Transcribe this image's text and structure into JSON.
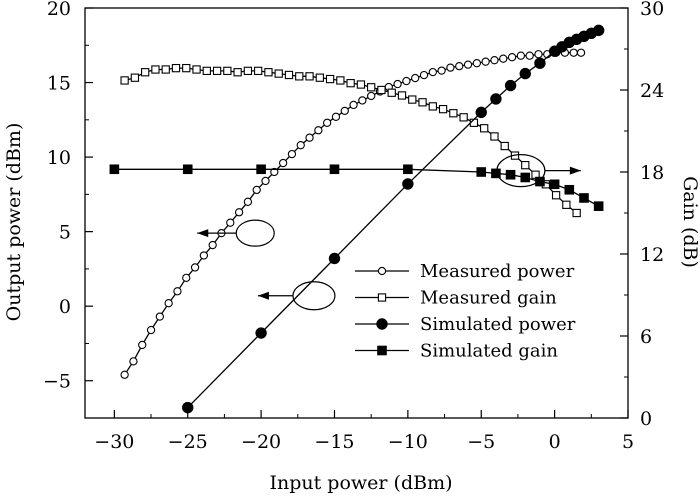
{
  "chart_data": {
    "type": "line",
    "xlabel": "Input power (dBm)",
    "ylabel": "Output power (dBm)",
    "y2label": "Gain (dB)",
    "xlim": [
      -32,
      5
    ],
    "ylim": [
      -7.5,
      20
    ],
    "y2lim": [
      0,
      30
    ],
    "x_ticks": [
      -30,
      -25,
      -20,
      -15,
      -10,
      -5,
      0,
      5
    ],
    "y_ticks": [
      -5,
      0,
      5,
      10,
      15,
      20
    ],
    "y2_ticks": [
      0,
      6,
      12,
      18,
      24,
      30
    ],
    "x_tick_labels": [
      "−30",
      "−25",
      "−20",
      "−15",
      "−10",
      "−5",
      "0",
      "5"
    ],
    "y_tick_labels": [
      "−5",
      "0",
      "5",
      "10",
      "15",
      "20"
    ],
    "y2_tick_labels": [
      "0",
      "6",
      "12",
      "18",
      "24",
      "30"
    ],
    "legend_position": "lower-right",
    "grid": false,
    "series": [
      {
        "name": "Measured power",
        "axis": "left",
        "marker": "circle-open",
        "x": [
          -29.3,
          -28.7,
          -28.1,
          -27.5,
          -26.9,
          -26.3,
          -25.7,
          -25.1,
          -24.5,
          -23.9,
          -23.3,
          -22.7,
          -22.1,
          -21.5,
          -20.9,
          -20.3,
          -19.7,
          -19.1,
          -18.5,
          -17.9,
          -17.3,
          -16.7,
          -16.1,
          -15.5,
          -14.9,
          -14.3,
          -13.7,
          -13.1,
          -12.5,
          -11.9,
          -11.3,
          -10.7,
          -10.1,
          -9.5,
          -8.9,
          -8.3,
          -7.7,
          -7.1,
          -6.5,
          -5.9,
          -5.3,
          -4.7,
          -4.1,
          -3.5,
          -2.9,
          -2.3,
          -1.7,
          -1.1,
          -0.5,
          0.1,
          0.7,
          1.3,
          1.8
        ],
        "y": [
          -4.6,
          -3.7,
          -2.6,
          -1.6,
          -0.7,
          0.2,
          1.0,
          1.9,
          2.6,
          3.4,
          4.1,
          4.9,
          5.6,
          6.3,
          7.0,
          7.8,
          8.4,
          9.0,
          9.6,
          10.2,
          10.8,
          11.3,
          11.8,
          12.3,
          12.7,
          13.1,
          13.5,
          13.8,
          14.1,
          14.4,
          14.7,
          14.9,
          15.1,
          15.3,
          15.5,
          15.7,
          15.8,
          16.0,
          16.1,
          16.2,
          16.3,
          16.4,
          16.5,
          16.6,
          16.7,
          16.8,
          16.8,
          16.9,
          16.9,
          17.0,
          17.0,
          17.0,
          17.0
        ]
      },
      {
        "name": "Measured gain",
        "axis": "right",
        "marker": "square-open",
        "x": [
          -29.3,
          -28.6,
          -27.9,
          -27.2,
          -26.5,
          -25.8,
          -25.1,
          -24.4,
          -23.7,
          -23.0,
          -22.3,
          -21.6,
          -20.9,
          -20.2,
          -19.5,
          -18.8,
          -18.1,
          -17.4,
          -16.7,
          -16.0,
          -15.3,
          -14.6,
          -13.9,
          -13.2,
          -12.5,
          -11.8,
          -11.1,
          -10.4,
          -9.7,
          -9.0,
          -8.3,
          -7.6,
          -6.9,
          -6.2,
          -5.5,
          -4.8,
          -4.1,
          -3.4,
          -2.7,
          -2.0,
          -1.3,
          -0.6,
          0.1,
          0.8,
          1.5
        ],
        "y": [
          24.7,
          24.9,
          25.3,
          25.5,
          25.5,
          25.6,
          25.6,
          25.5,
          25.4,
          25.4,
          25.4,
          25.3,
          25.4,
          25.4,
          25.3,
          25.2,
          25.1,
          25.0,
          25.0,
          24.9,
          24.8,
          24.7,
          24.5,
          24.4,
          24.2,
          24.0,
          23.8,
          23.6,
          23.3,
          23.1,
          22.8,
          22.6,
          22.3,
          22.0,
          21.6,
          21.2,
          20.6,
          19.9,
          19.2,
          18.5,
          17.8,
          17.1,
          16.3,
          15.6,
          15.0
        ]
      },
      {
        "name": "Simulated power",
        "axis": "left",
        "marker": "circle-filled",
        "x": [
          -25,
          -20,
          -15,
          -10,
          -5,
          -4,
          -3,
          -2,
          -1,
          0,
          0.5,
          1,
          1.5,
          2,
          2.5,
          3
        ],
        "y": [
          -6.8,
          -1.8,
          3.2,
          8.2,
          13.0,
          13.9,
          14.8,
          15.6,
          16.3,
          17.1,
          17.4,
          17.7,
          17.9,
          18.1,
          18.3,
          18.5
        ]
      },
      {
        "name": "Simulated gain",
        "axis": "right",
        "marker": "square-filled",
        "x": [
          -30,
          -25,
          -20,
          -15,
          -10,
          -5,
          -4,
          -3,
          -2,
          -1,
          0,
          1,
          2,
          3
        ],
        "y": [
          18.2,
          18.2,
          18.2,
          18.2,
          18.2,
          18.0,
          17.9,
          17.8,
          17.6,
          17.3,
          17.1,
          16.7,
          16.1,
          15.5
        ]
      }
    ]
  }
}
